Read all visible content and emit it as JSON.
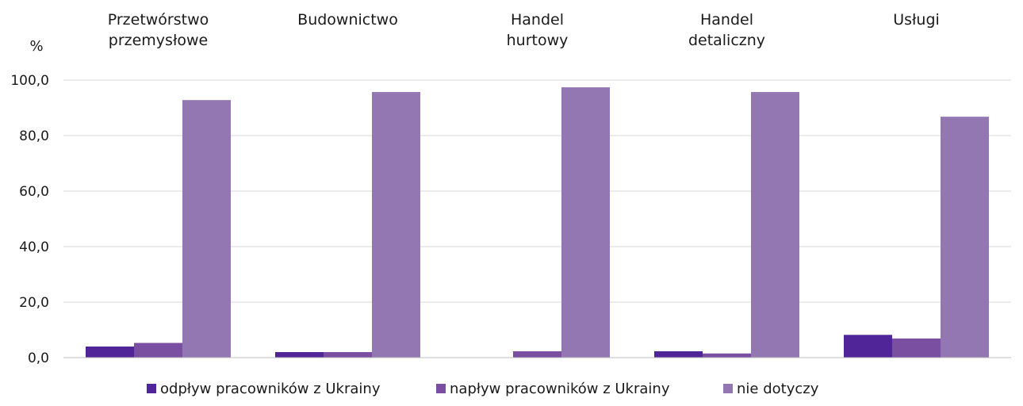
{
  "chart_data": {
    "type": "bar",
    "ylabel": "%",
    "ylim": [
      0,
      100
    ],
    "yticks": [
      "0,0",
      "20,0",
      "40,0",
      "60,0",
      "80,0",
      "100,0"
    ],
    "grid": true,
    "legend_position": "bottom",
    "categories": [
      [
        "Przetwórstwo",
        "przemysłowe"
      ],
      [
        "Budownictwo"
      ],
      [
        "Handel",
        "hurtowy"
      ],
      [
        "Handel",
        "detaliczny"
      ],
      [
        "Usługi"
      ]
    ],
    "series": [
      {
        "name": "odpływ pracowników z Ukrainy",
        "color": "#4f2597",
        "values": [
          4.0,
          2.0,
          0.0,
          2.3,
          8.2
        ]
      },
      {
        "name": "napływ pracowników z Ukrainy",
        "color": "#7a4ea0",
        "values": [
          5.3,
          2.0,
          2.3,
          1.5,
          6.9
        ]
      },
      {
        "name": "nie dotyczy",
        "color": "#9377b2",
        "values": [
          92.8,
          95.7,
          97.4,
          95.7,
          86.8
        ]
      }
    ]
  }
}
